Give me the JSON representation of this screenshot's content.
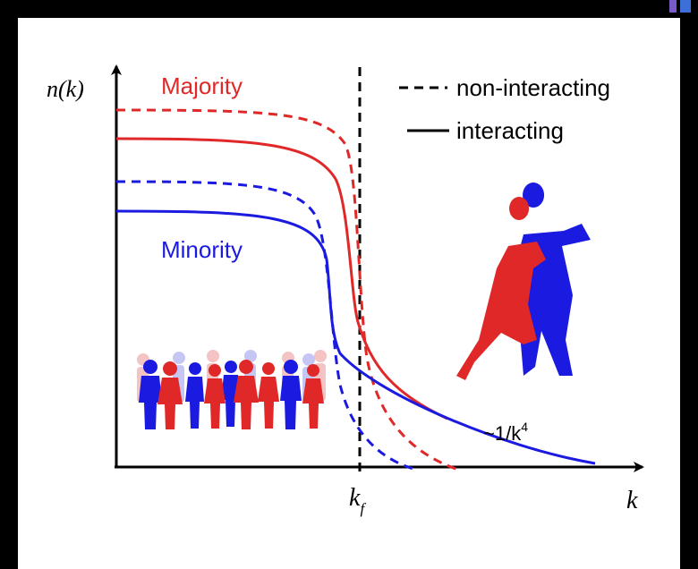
{
  "axes": {
    "y_label": "n(k)",
    "x_label": "k",
    "fermi_momentum": {
      "text": "k",
      "subscript": "f"
    }
  },
  "labels": {
    "majority": "Majority",
    "minority": "Minority",
    "tail": {
      "text": "~1/k",
      "superscript": "4"
    }
  },
  "legend": {
    "dashed": "non-interacting",
    "solid": "interacting"
  }
}
